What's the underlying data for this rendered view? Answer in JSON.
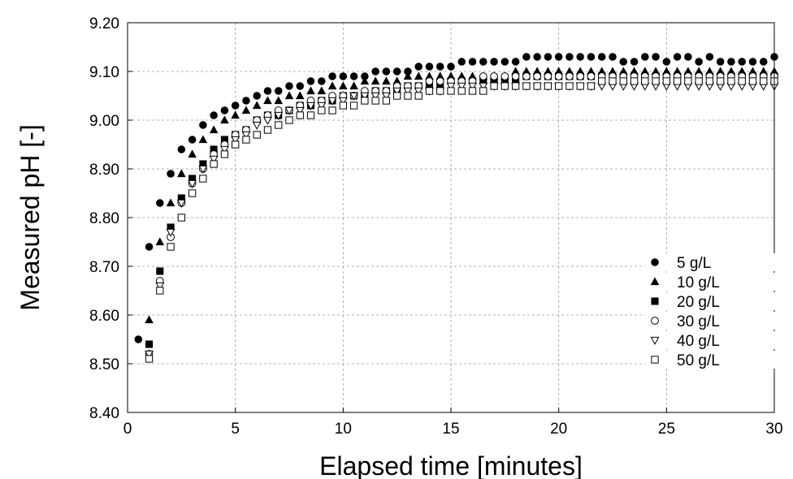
{
  "chart_data": {
    "type": "scatter",
    "title": "",
    "xlabel": "Elapsed time [minutes]",
    "ylabel": "Measured pH [-]",
    "xlim": [
      0,
      30
    ],
    "ylim": [
      8.4,
      9.2
    ],
    "xticks": [
      0,
      5,
      10,
      15,
      20,
      25,
      30
    ],
    "xtick_labels": [
      "0",
      "5",
      "10",
      "15",
      "20",
      "25",
      "30"
    ],
    "yticks": [
      8.4,
      8.5,
      8.6,
      8.7,
      8.8,
      8.9,
      9.0,
      9.1,
      9.2
    ],
    "ytick_labels": [
      "8.40",
      "8.50",
      "8.60",
      "8.70",
      "8.80",
      "8.90",
      "9.00",
      "9.10",
      "9.20"
    ],
    "grid": true,
    "legend_position": "bottom-right",
    "series": [
      {
        "name": "5 g/L",
        "marker": "circle-filled",
        "x": [
          0.5,
          1,
          1.5,
          2,
          2.5,
          3,
          3.5,
          4,
          4.5,
          5,
          5.5,
          6,
          6.5,
          7,
          7.5,
          8,
          8.5,
          9,
          9.5,
          10,
          10.5,
          11,
          11.5,
          12,
          12.5,
          13,
          13.5,
          14,
          14.5,
          15,
          15.5,
          16,
          16.5,
          17,
          17.5,
          18,
          18.5,
          19,
          19.5,
          20,
          20.5,
          21,
          21.5,
          22,
          22.5,
          23,
          23.5,
          24,
          24.5,
          25,
          25.5,
          26,
          26.5,
          27,
          27.5,
          28,
          28.5,
          29,
          29.5,
          30
        ],
        "y": [
          8.55,
          8.74,
          8.83,
          8.89,
          8.94,
          8.96,
          8.99,
          9.01,
          9.02,
          9.03,
          9.04,
          9.05,
          9.06,
          9.06,
          9.07,
          9.07,
          9.08,
          9.08,
          9.09,
          9.09,
          9.09,
          9.09,
          9.1,
          9.1,
          9.1,
          9.1,
          9.11,
          9.11,
          9.11,
          9.11,
          9.12,
          9.12,
          9.12,
          9.12,
          9.12,
          9.12,
          9.13,
          9.13,
          9.13,
          9.13,
          9.13,
          9.13,
          9.13,
          9.13,
          9.13,
          9.12,
          9.12,
          9.13,
          9.13,
          9.12,
          9.13,
          9.13,
          9.12,
          9.13,
          9.12,
          9.12,
          9.12,
          9.12,
          9.12,
          9.13
        ]
      },
      {
        "name": "10 g/L",
        "marker": "triangle-up-filled",
        "x": [
          1,
          1.5,
          2,
          2.5,
          3,
          3.5,
          4,
          4.5,
          5,
          5.5,
          6,
          6.5,
          7,
          7.5,
          8,
          8.5,
          9,
          9.5,
          10,
          10.5,
          11,
          11.5,
          12,
          12.5,
          13,
          13.5,
          14,
          14.5,
          15,
          15.5,
          16,
          16.5,
          17,
          17.5,
          18,
          18.5,
          19,
          19.5,
          20,
          20.5,
          21,
          21.5,
          22,
          22.5,
          23,
          23.5,
          24,
          24.5,
          25,
          25.5,
          26,
          26.5,
          27,
          27.5,
          28,
          28.5,
          29,
          29.5,
          30
        ],
        "y": [
          8.59,
          8.75,
          8.83,
          8.89,
          8.93,
          8.96,
          8.98,
          9.0,
          9.01,
          9.02,
          9.03,
          9.04,
          9.04,
          9.05,
          9.05,
          9.06,
          9.06,
          9.07,
          9.07,
          9.07,
          9.08,
          9.08,
          9.08,
          9.08,
          9.09,
          9.09,
          9.09,
          9.09,
          9.09,
          9.09,
          9.09,
          9.09,
          9.09,
          9.09,
          9.1,
          9.1,
          9.1,
          9.1,
          9.1,
          9.1,
          9.1,
          9.1,
          9.1,
          9.1,
          9.1,
          9.1,
          9.1,
          9.1,
          9.1,
          9.1,
          9.1,
          9.1,
          9.1,
          9.1,
          9.1,
          9.1,
          9.1,
          9.1,
          9.1
        ]
      },
      {
        "name": "20 g/L",
        "marker": "square-filled",
        "x": [
          1,
          1.5,
          2,
          2.5,
          3,
          3.5,
          4,
          4.5,
          5,
          5.5,
          6,
          6.5,
          7,
          7.5,
          8,
          8.5,
          9,
          9.5,
          10,
          10.5,
          11,
          11.5,
          12,
          12.5,
          13,
          13.5,
          14,
          14.5,
          15,
          15.5,
          16,
          16.5,
          17,
          17.5,
          18,
          18.5,
          19,
          19.5,
          20,
          20.5,
          21,
          21.5,
          22,
          22.5,
          23,
          23.5,
          24,
          24.5,
          25,
          25.5,
          26,
          26.5,
          27,
          27.5,
          28,
          28.5,
          29,
          29.5,
          30
        ],
        "y": [
          8.54,
          8.69,
          8.78,
          8.84,
          8.88,
          8.91,
          8.94,
          8.96,
          8.97,
          8.98,
          9.0,
          9.01,
          9.01,
          9.02,
          9.03,
          9.03,
          9.04,
          9.04,
          9.05,
          9.05,
          9.05,
          9.06,
          9.06,
          9.06,
          9.07,
          9.07,
          9.07,
          9.07,
          9.08,
          9.08,
          9.08,
          9.08,
          9.08,
          9.08,
          9.08,
          9.09,
          9.09,
          9.09,
          9.09,
          9.09,
          9.09,
          9.09,
          9.09,
          9.09,
          9.09,
          9.09,
          9.09,
          9.09,
          9.09,
          9.09,
          9.09,
          9.09,
          9.09,
          9.09,
          9.09,
          9.09,
          9.09,
          9.09,
          9.09
        ]
      },
      {
        "name": "30 g/L",
        "marker": "circle-open",
        "x": [
          1,
          1.5,
          2,
          2.5,
          3,
          3.5,
          4,
          4.5,
          5,
          5.5,
          6,
          6.5,
          7,
          7.5,
          8,
          8.5,
          9,
          9.5,
          10,
          10.5,
          11,
          11.5,
          12,
          12.5,
          13,
          13.5,
          14,
          14.5,
          15,
          15.5,
          16,
          16.5,
          17,
          17.5,
          18,
          18.5,
          19,
          19.5,
          20,
          20.5,
          21,
          21.5,
          22,
          22.5,
          23,
          23.5,
          24,
          24.5,
          25,
          25.5,
          26,
          26.5,
          27,
          27.5,
          28,
          28.5,
          29,
          29.5,
          30
        ],
        "y": [
          8.52,
          8.67,
          8.76,
          8.83,
          8.87,
          8.9,
          8.93,
          8.95,
          8.97,
          8.98,
          9.0,
          9.01,
          9.02,
          9.02,
          9.03,
          9.04,
          9.04,
          9.05,
          9.05,
          9.05,
          9.06,
          9.06,
          9.06,
          9.07,
          9.07,
          9.07,
          9.08,
          9.08,
          9.08,
          9.08,
          9.08,
          9.09,
          9.09,
          9.09,
          9.09,
          9.09,
          9.09,
          9.09,
          9.09,
          9.09,
          9.09,
          9.09,
          9.09,
          9.09,
          9.09,
          9.09,
          9.09,
          9.09,
          9.09,
          9.09,
          9.09,
          9.09,
          9.09,
          9.09,
          9.09,
          9.09,
          9.09,
          9.09,
          9.09
        ]
      },
      {
        "name": "40 g/L",
        "marker": "triangle-down-open",
        "x": [
          1,
          1.5,
          2,
          2.5,
          3,
          3.5,
          4,
          4.5,
          5,
          5.5,
          6,
          6.5,
          7,
          7.5,
          8,
          8.5,
          9,
          9.5,
          10,
          10.5,
          11,
          11.5,
          12,
          12.5,
          13,
          13.5,
          14,
          14.5,
          15,
          15.5,
          16,
          16.5,
          17,
          17.5,
          18,
          18.5,
          19,
          19.5,
          20,
          20.5,
          21,
          21.5,
          22,
          22.5,
          23,
          23.5,
          24,
          24.5,
          25,
          25.5,
          26,
          26.5,
          27,
          27.5,
          28,
          28.5,
          29,
          29.5,
          30
        ],
        "y": [
          8.52,
          8.66,
          8.77,
          8.83,
          8.87,
          8.9,
          8.92,
          8.94,
          8.96,
          8.97,
          8.99,
          9.0,
          9.01,
          9.02,
          9.02,
          9.03,
          9.03,
          9.04,
          9.04,
          9.05,
          9.05,
          9.05,
          9.05,
          9.06,
          9.06,
          9.06,
          9.06,
          9.06,
          9.07,
          9.07,
          9.07,
          9.07,
          9.07,
          9.07,
          9.07,
          9.07,
          9.07,
          9.07,
          9.07,
          9.07,
          9.07,
          9.07,
          9.07,
          9.07,
          9.07,
          9.07,
          9.07,
          9.07,
          9.07,
          9.07,
          9.07,
          9.07,
          9.07,
          9.07,
          9.07,
          9.07,
          9.07,
          9.07,
          9.07
        ]
      },
      {
        "name": "50 g/L",
        "marker": "square-open",
        "x": [
          1,
          1.5,
          2,
          2.5,
          3,
          3.5,
          4,
          4.5,
          5,
          5.5,
          6,
          6.5,
          7,
          7.5,
          8,
          8.5,
          9,
          9.5,
          10,
          10.5,
          11,
          11.5,
          12,
          12.5,
          13,
          13.5,
          14,
          14.5,
          15,
          15.5,
          16,
          16.5,
          17,
          17.5,
          18,
          18.5,
          19,
          19.5,
          20,
          20.5,
          21,
          21.5,
          22,
          22.5,
          23,
          23.5,
          24,
          24.5,
          25,
          25.5,
          26,
          26.5,
          27,
          27.5,
          28,
          28.5,
          29,
          29.5,
          30
        ],
        "y": [
          8.51,
          8.65,
          8.74,
          8.8,
          8.85,
          8.88,
          8.91,
          8.93,
          8.95,
          8.96,
          8.97,
          8.98,
          8.99,
          9.0,
          9.01,
          9.01,
          9.02,
          9.02,
          9.03,
          9.03,
          9.04,
          9.04,
          9.04,
          9.05,
          9.05,
          9.05,
          9.06,
          9.06,
          9.06,
          9.06,
          9.06,
          9.06,
          9.07,
          9.07,
          9.07,
          9.07,
          9.07,
          9.07,
          9.07,
          9.07,
          9.07,
          9.07,
          9.08,
          9.08,
          9.08,
          9.08,
          9.08,
          9.08,
          9.08,
          9.08,
          9.08,
          9.08,
          9.08,
          9.08,
          9.08,
          9.08,
          9.08,
          9.08,
          9.08
        ]
      }
    ]
  }
}
